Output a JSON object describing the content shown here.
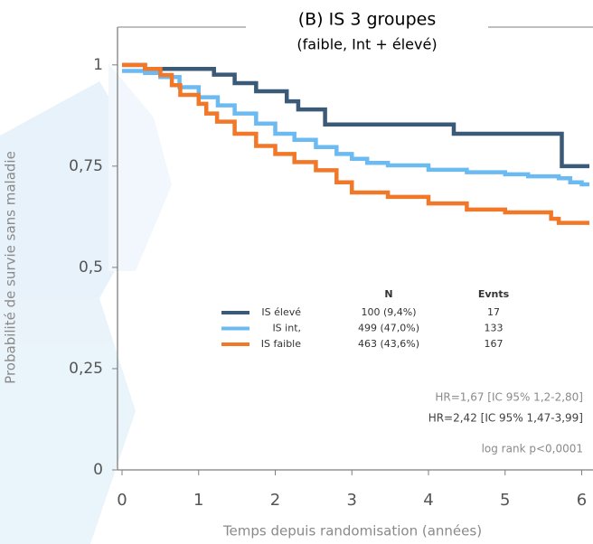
{
  "chart_data": {
    "type": "step",
    "title": "(B) IS 3 groupes",
    "subtitle": "(faible, Int + élevé)",
    "y_label": "Probabilité de survie sans maladie",
    "x_label": "Temps depuis randomisation (années)",
    "xlim": [
      0,
      6.1
    ],
    "ylim": [
      0,
      1.1
    ],
    "xticks": [
      0,
      1,
      2,
      3,
      4,
      5,
      6
    ],
    "yticks": [
      0,
      {
        "value": 0.25,
        "label": "0,25"
      },
      {
        "value": 0.5,
        "label": "0,5"
      },
      {
        "value": 0.75,
        "label": "0,75"
      },
      1
    ],
    "legend_headers": [
      "N",
      "Evnts"
    ],
    "series": [
      {
        "name": "IS élevé",
        "color": "#3a5a78",
        "n": "100 (9,4%)",
        "events": 17,
        "x": [
          0,
          0.3,
          1.2,
          1.47,
          1.75,
          2.15,
          2.3,
          2.65,
          4.33,
          5.74,
          6.1
        ],
        "values": [
          1,
          0.99,
          0.976,
          0.955,
          0.935,
          0.91,
          0.89,
          0.853,
          0.83,
          0.75,
          0.75
        ]
      },
      {
        "name": "IS int,",
        "color": "#6cbaf2",
        "n": "499 (47,0%)",
        "events": 133,
        "x": [
          0,
          0.3,
          0.5,
          0.75,
          1,
          1.25,
          1.47,
          1.75,
          2,
          2.25,
          2.53,
          2.8,
          3,
          3.2,
          3.47,
          4,
          4.5,
          5,
          5.3,
          5.7,
          5.85,
          6,
          6.1
        ],
        "values": [
          0.985,
          0.98,
          0.97,
          0.945,
          0.92,
          0.9,
          0.88,
          0.855,
          0.83,
          0.815,
          0.797,
          0.78,
          0.768,
          0.758,
          0.752,
          0.741,
          0.735,
          0.73,
          0.725,
          0.72,
          0.71,
          0.705,
          0.705
        ]
      },
      {
        "name": "IS faible",
        "color": "#f07828",
        "n": "463 (43,6%)",
        "events": 167,
        "x": [
          0,
          0.3,
          0.5,
          0.65,
          0.76,
          1,
          1.1,
          1.24,
          1.47,
          1.75,
          2,
          2.25,
          2.53,
          2.8,
          3,
          3.47,
          4,
          4.5,
          5,
          5.5,
          5.6,
          5.7,
          6.1
        ],
        "values": [
          1,
          0.99,
          0.975,
          0.95,
          0.926,
          0.904,
          0.88,
          0.86,
          0.83,
          0.8,
          0.78,
          0.76,
          0.74,
          0.71,
          0.685,
          0.674,
          0.658,
          0.643,
          0.636,
          0.636,
          0.62,
          0.61,
          0.61
        ]
      }
    ],
    "annotations": [
      "HR=1,67 [IC 95% 1,2-2,80]",
      "HR=2,42 [IC 95% 1,47-3,99]",
      "log rank p<0,0001"
    ]
  }
}
